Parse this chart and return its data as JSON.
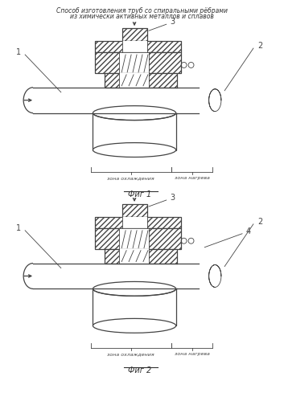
{
  "title_line1": "Способ изготовления труб со спиральными рёбрами",
  "title_line2": "из химически активных металлов и сплавов",
  "fig1_label": "Фиг 1",
  "fig2_label": "Фиг 2",
  "zone_cooling": "зона охлаждения",
  "zone_heating": "зона нагрева",
  "bg_color": "#ffffff",
  "line_color": "#444444",
  "label1": "1",
  "label2": "2",
  "label3": "3",
  "label4": "4"
}
